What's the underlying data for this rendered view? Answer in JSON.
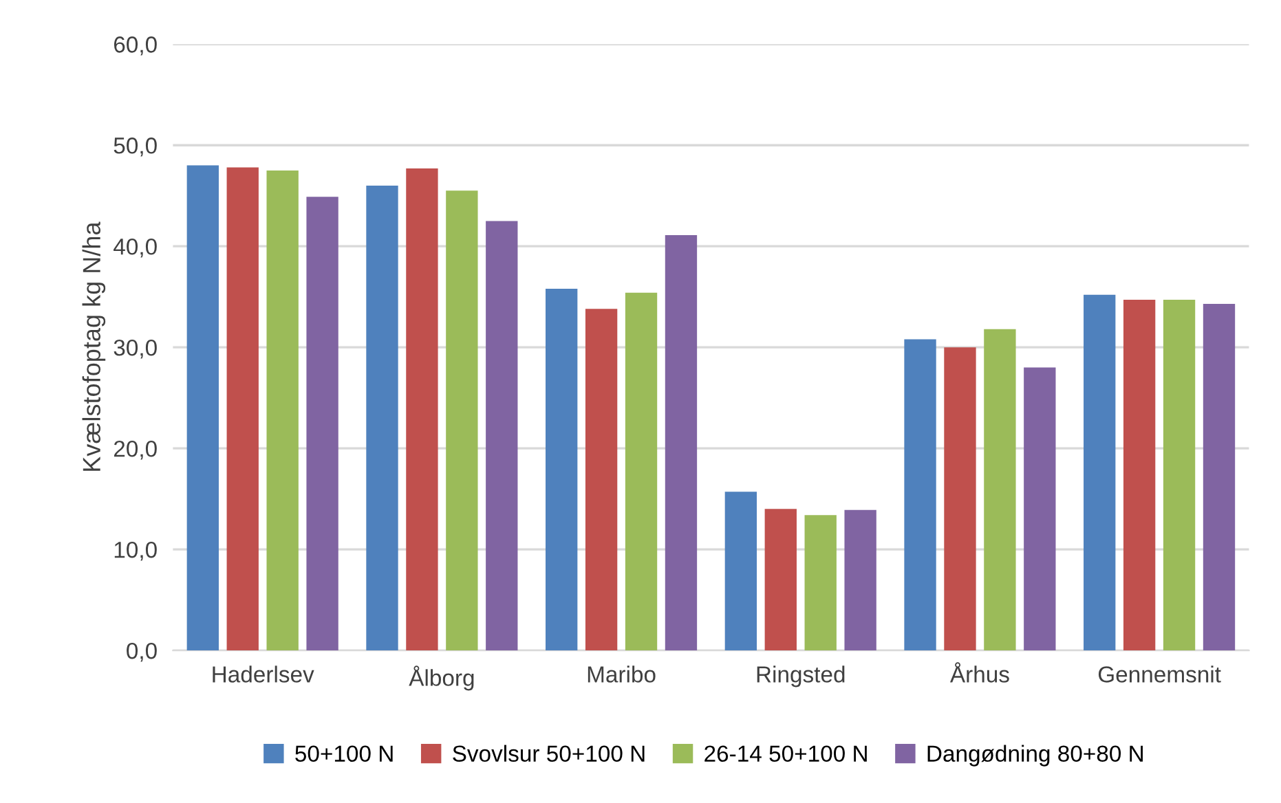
{
  "chart_data": {
    "type": "bar",
    "ylabel": "Kvælstofoptag kg N/ha",
    "categories": [
      "Haderlsev",
      "Ålborg",
      "Maribo",
      "Ringsted",
      "Århus",
      "Gennemsnit"
    ],
    "series": [
      {
        "name": "50+100 N",
        "color": "#4f81bd",
        "values": [
          48.0,
          46.0,
          35.8,
          15.7,
          30.8,
          35.2
        ]
      },
      {
        "name": "Svovlsur 50+100 N",
        "color": "#c0504d",
        "values": [
          47.8,
          47.7,
          33.8,
          14.0,
          30.0,
          34.7
        ]
      },
      {
        "name": "26-14 50+100 N",
        "color": "#9bbb59",
        "values": [
          47.5,
          45.5,
          35.4,
          13.4,
          31.8,
          34.7
        ]
      },
      {
        "name": "Dangødning 80+80 N",
        "color": "#8064a2",
        "values": [
          44.9,
          42.5,
          41.1,
          13.9,
          28.0,
          34.3
        ]
      }
    ],
    "ylim": [
      0,
      60
    ],
    "yticks": [
      {
        "value": 0,
        "label": "0,0"
      },
      {
        "value": 10,
        "label": "10,0"
      },
      {
        "value": 20,
        "label": "20,0"
      },
      {
        "value": 30,
        "label": "30,0"
      },
      {
        "value": 40,
        "label": "40,0"
      },
      {
        "value": 50,
        "label": "50,0"
      },
      {
        "value": 60,
        "label": "60,0"
      }
    ],
    "grid": "y",
    "legend": "bottom"
  }
}
